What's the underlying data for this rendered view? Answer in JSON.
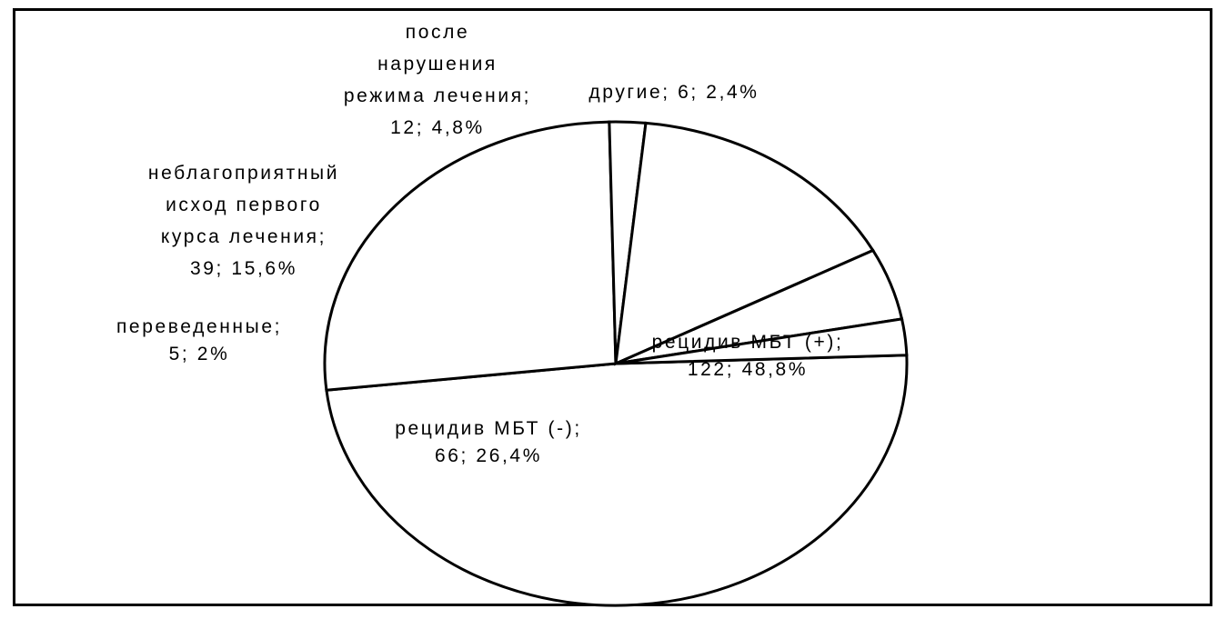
{
  "chart_data": {
    "type": "pie",
    "slices": [
      {
        "lines": [
          "рецидив МБТ (+);",
          "122; 48,8%"
        ],
        "value": 122,
        "percent": 48.8
      },
      {
        "lines": [
          "рецидив МБТ (-);",
          "66; 26,4%"
        ],
        "value": 66,
        "percent": 26.4
      },
      {
        "lines": [
          "переведенные;",
          "5; 2%"
        ],
        "value": 5,
        "percent": 2
      },
      {
        "lines": [
          "неблагоприятный",
          "исход первого",
          "курса лечения;",
          "39; 15,6%"
        ],
        "value": 39,
        "percent": 15.6
      },
      {
        "lines": [
          "после",
          "нарушения",
          "режима лечения;",
          "12; 4,8%"
        ],
        "value": 12,
        "percent": 4.8
      },
      {
        "lines": [
          "другие; 6; 2,4%"
        ],
        "value": 6,
        "percent": 2.4
      }
    ]
  }
}
